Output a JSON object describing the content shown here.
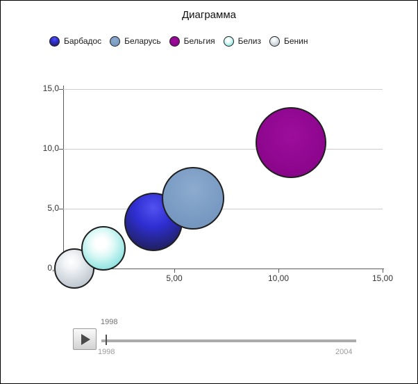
{
  "title": "Диаграмма",
  "legend": [
    {
      "label": "Барбадос",
      "style": "barbados",
      "color": "#2e2ed2"
    },
    {
      "label": "Беларусь",
      "style": "belarus",
      "color": "#7b9cc4"
    },
    {
      "label": "Бельгия",
      "style": "belgium",
      "color": "#8d068d"
    },
    {
      "label": "Белиз",
      "style": "belize",
      "color": "#5fd0cf"
    },
    {
      "label": "Бенин",
      "style": "benin",
      "color": "#c2cad2"
    }
  ],
  "chart_data": {
    "type": "scatter",
    "title": "Диаграмма",
    "xlabel": "",
    "ylabel": "",
    "xlim": [
      0,
      15
    ],
    "ylim": [
      0,
      15
    ],
    "grid": true,
    "legend_position": "top",
    "x_ticks": [
      "0,00",
      "5,00",
      "10,00",
      "15,00"
    ],
    "x_tick_values": [
      0,
      5,
      10,
      15
    ],
    "y_ticks": [
      "0,0",
      "5,0",
      "10,0",
      "15,0"
    ],
    "y_tick_values": [
      0,
      5,
      10,
      15
    ],
    "points": [
      {
        "name": "Бенин",
        "x": 0.2,
        "y": 0.0,
        "radius_px": 29,
        "style": "benin",
        "color": "#c2cad2"
      },
      {
        "name": "Белиз",
        "x": 1.6,
        "y": 1.7,
        "radius_px": 32,
        "style": "belize",
        "color": "#5fd0cf"
      },
      {
        "name": "Барбадос",
        "x": 4.0,
        "y": 3.9,
        "radius_px": 42,
        "style": "barbados",
        "color": "#2e2ed2"
      },
      {
        "name": "Беларусь",
        "x": 5.9,
        "y": 5.9,
        "radius_px": 45,
        "style": "belarus",
        "color": "#7b9cc4"
      },
      {
        "name": "Бельгия",
        "x": 10.6,
        "y": 10.5,
        "radius_px": 51,
        "style": "belgium",
        "color": "#8d068d"
      }
    ]
  },
  "timeline": {
    "current_year": "1998",
    "range_start": "1998",
    "range_end": "2004"
  }
}
